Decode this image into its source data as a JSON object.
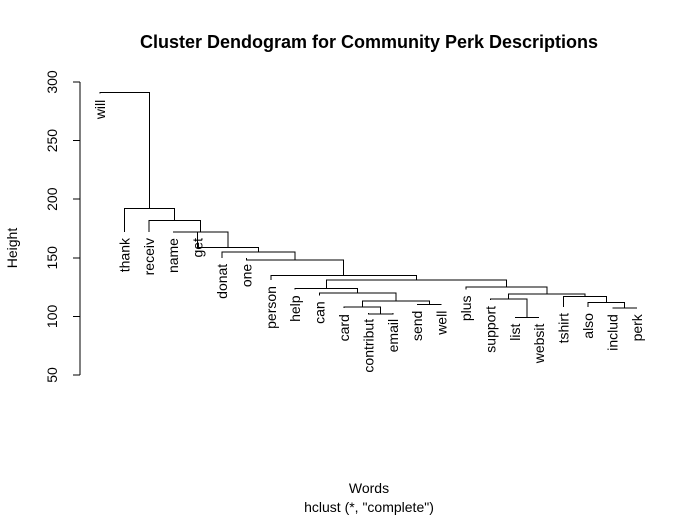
{
  "chart_data": {
    "type": "dendrogram",
    "title": "Cluster Dendogram for Community Perk Descriptions",
    "xlabel": "Words",
    "sublabel": "hclust (*, \"complete\")",
    "ylabel": "Height",
    "ylim": [
      50,
      300
    ],
    "yticks": [
      50,
      100,
      150,
      200,
      250,
      300
    ],
    "leaves": [
      "will",
      "thank",
      "receiv",
      "name",
      "get",
      "donat",
      "one",
      "person",
      "help",
      "can",
      "card",
      "contribut",
      "email",
      "send",
      "well",
      "plus",
      "support",
      "list",
      "websit",
      "tshirt",
      "also",
      "includ",
      "perk"
    ],
    "leaf_heights": [
      290,
      172,
      172,
      172,
      172,
      150,
      150,
      131,
      123,
      118,
      107,
      103,
      103,
      110,
      110,
      123,
      114,
      99,
      99,
      108,
      108,
      107,
      107
    ],
    "merges": [
      {
        "a": "list",
        "b": "websit",
        "height": 99
      },
      {
        "a": "contribut",
        "b": "email",
        "height": 102
      },
      {
        "a": "includ",
        "b": "perk",
        "height": 107
      },
      {
        "a": "card",
        "b": "(contribut,email)",
        "height": 108
      },
      {
        "a": "send",
        "b": "well",
        "height": 110
      },
      {
        "a": "also",
        "b": "(includ,perk)",
        "height": 112
      },
      {
        "a": "(card,contribut,email)",
        "b": "(send,well)",
        "height": 113
      },
      {
        "a": "support",
        "b": "(list,websit)",
        "height": 115
      },
      {
        "a": "tshirt",
        "b": "(also,includ,perk)",
        "height": 117
      },
      {
        "a": "(support,list,websit)",
        "b": "(tshirt,also,includ,perk)",
        "height": 119
      },
      {
        "a": "can",
        "b": "(card..well)",
        "height": 120
      },
      {
        "a": "help",
        "b": "(can..well)",
        "height": 124
      },
      {
        "a": "plus",
        "b": "(support..perk)",
        "height": 125
      },
      {
        "a": "(help..well)",
        "b": "(plus..perk)",
        "height": 131
      },
      {
        "a": "person",
        "b": "(help..perk)",
        "height": 135
      },
      {
        "a": "one",
        "b": "(person..perk)",
        "height": 148
      },
      {
        "a": "donat",
        "b": "(one..perk)",
        "height": 155
      },
      {
        "a": "get",
        "b": "(donat..perk)",
        "height": 159
      },
      {
        "a": "name",
        "b": "(get..perk)",
        "height": 172
      },
      {
        "a": "receiv",
        "b": "(name..perk)",
        "height": 182
      },
      {
        "a": "thank",
        "b": "(receiv..perk)",
        "height": 192
      },
      {
        "a": "will",
        "b": "(thank..perk)",
        "height": 291
      }
    ]
  }
}
